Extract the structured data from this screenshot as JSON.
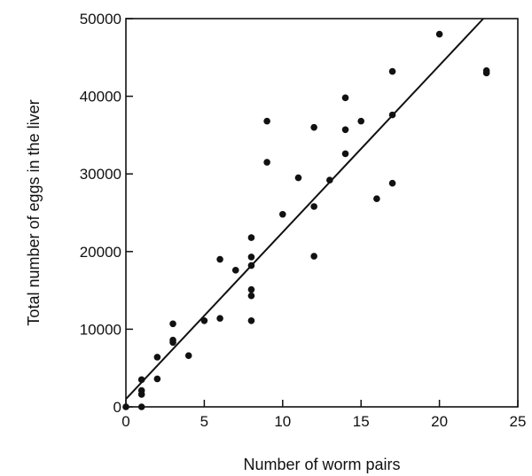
{
  "chart_data": {
    "type": "scatter",
    "xlabel": "Number of worm pairs",
    "ylabel": "Total number of eggs in the liver",
    "xlim": [
      0,
      25
    ],
    "ylim": [
      0,
      50000
    ],
    "xticks": [
      0,
      5,
      10,
      15,
      20,
      25
    ],
    "yticks": [
      0,
      10000,
      20000,
      30000,
      40000,
      50000
    ],
    "x_tick_labels": [
      "0",
      "5",
      "10",
      "15",
      "20",
      "25"
    ],
    "y_tick_labels": [
      "0",
      "10000",
      "20000",
      "30000",
      "40000",
      "50000"
    ],
    "grid": false,
    "points": [
      {
        "x": 0,
        "y": 0
      },
      {
        "x": 1,
        "y": 0
      },
      {
        "x": 1,
        "y": 1600
      },
      {
        "x": 1,
        "y": 2100
      },
      {
        "x": 1,
        "y": 3500
      },
      {
        "x": 2,
        "y": 3600
      },
      {
        "x": 2,
        "y": 6400
      },
      {
        "x": 3,
        "y": 8300
      },
      {
        "x": 3,
        "y": 8600
      },
      {
        "x": 3,
        "y": 10700
      },
      {
        "x": 4,
        "y": 6600
      },
      {
        "x": 5,
        "y": 11100
      },
      {
        "x": 6,
        "y": 11400
      },
      {
        "x": 6,
        "y": 19000
      },
      {
        "x": 7,
        "y": 17600
      },
      {
        "x": 8,
        "y": 11100
      },
      {
        "x": 8,
        "y": 14300
      },
      {
        "x": 8,
        "y": 15100
      },
      {
        "x": 8,
        "y": 18200
      },
      {
        "x": 8,
        "y": 19300
      },
      {
        "x": 8,
        "y": 21800
      },
      {
        "x": 9,
        "y": 31500
      },
      {
        "x": 9,
        "y": 36800
      },
      {
        "x": 10,
        "y": 24800
      },
      {
        "x": 11,
        "y": 29500
      },
      {
        "x": 12,
        "y": 19400
      },
      {
        "x": 12,
        "y": 25800
      },
      {
        "x": 12,
        "y": 36000
      },
      {
        "x": 13,
        "y": 29200
      },
      {
        "x": 14,
        "y": 32600
      },
      {
        "x": 14,
        "y": 35700
      },
      {
        "x": 14,
        "y": 39800
      },
      {
        "x": 15,
        "y": 36800
      },
      {
        "x": 16,
        "y": 26800
      },
      {
        "x": 17,
        "y": 28800
      },
      {
        "x": 17,
        "y": 37600
      },
      {
        "x": 17,
        "y": 43200
      },
      {
        "x": 20,
        "y": 48000
      },
      {
        "x": 23,
        "y": 43000
      },
      {
        "x": 23,
        "y": 43300
      }
    ],
    "fit_line": {
      "x": [
        0,
        22.8
      ],
      "y": [
        1000,
        50000
      ]
    },
    "colors": {
      "marker": "#111111",
      "line": "#111111",
      "axis": "#111111"
    }
  }
}
